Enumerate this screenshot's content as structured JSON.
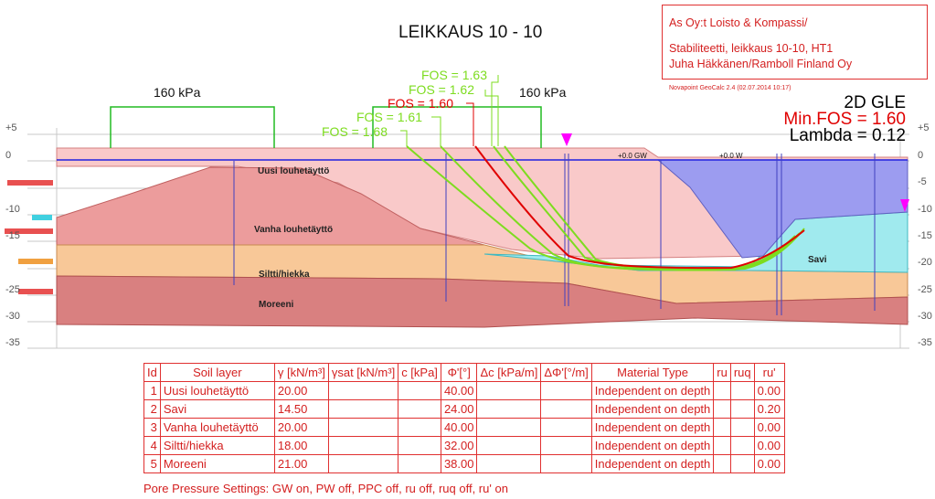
{
  "title": "LEIKKAUS 10 - 10",
  "info_box": {
    "line1": "As Oy:t Loisto & Kompassi/",
    "line2": "Stabiliteetti, leikkaus 10-10, HT1",
    "line3": "Juha Häkkänen/Ramboll Finland Oy"
  },
  "software_note": "Novapoint GeoCalc 2.4  (02.07.2014 10:17)",
  "results": {
    "method": "2D GLE",
    "min_fos": "Min.FOS = 1.60",
    "lambda": "Lambda = 0.12"
  },
  "loads": [
    {
      "label": "160 kPa"
    },
    {
      "label": "160 kPa"
    }
  ],
  "fos_labels": [
    {
      "text": "FOS = 1.63",
      "color": "#7ddc1f"
    },
    {
      "text": "FOS = 1.62",
      "color": "#7ddc1f"
    },
    {
      "text": "FOS = 1.60",
      "color": "#e00000"
    },
    {
      "text": "FOS = 1.61",
      "color": "#7ddc1f"
    },
    {
      "text": "FOS = 1.68",
      "color": "#7ddc1f"
    }
  ],
  "axis": {
    "ticks": [
      "+5",
      "0",
      "-5",
      "-10",
      "-15",
      "-20",
      "-25",
      "-30",
      "-35"
    ]
  },
  "water_labels": [
    "+0.0 GW",
    "+0.0 W"
  ],
  "layer_labels": {
    "uusi": "Uusi louhetäyttö",
    "vanha": "Vanha louhetäyttö",
    "siltti": "Siltti/hiekka",
    "moreeni": "Moreeni",
    "savi": "Savi"
  },
  "colors": {
    "uusi": "#f9c9c9",
    "vanha": "#ec9c9c",
    "siltti": "#f8c898",
    "moreeni": "#d98080",
    "savi": "#a0eaee",
    "water": "#9c9cf0",
    "slip_critical": "#e00000",
    "slip_other": "#7ddc1f",
    "load": "#22bb22",
    "accent": "#d42020"
  },
  "table": {
    "headers": [
      "Id",
      "Soil layer",
      "γ [kN/m³]",
      "γsat [kN/m³]",
      "c [kPa]",
      "Φ'[°]",
      "Δc [kPa/m]",
      "ΔΦ'[°/m]",
      "Material Type",
      "ru",
      "ruq",
      "ru'"
    ],
    "rows": [
      [
        "1",
        "Uusi louhetäyttö",
        "20.00",
        "",
        "",
        "40.00",
        "",
        "",
        "Independent on depth",
        "",
        "",
        "0.00"
      ],
      [
        "2",
        "Savi",
        "14.50",
        "",
        "",
        "24.00",
        "",
        "",
        "Independent on depth",
        "",
        "",
        "0.20"
      ],
      [
        "3",
        "Vanha louhetäyttö",
        "20.00",
        "",
        "",
        "40.00",
        "",
        "",
        "Independent on depth",
        "",
        "",
        "0.00"
      ],
      [
        "4",
        "Siltti/hiekka",
        "18.00",
        "",
        "",
        "32.00",
        "",
        "",
        "Independent on depth",
        "",
        "",
        "0.00"
      ],
      [
        "5",
        "Moreeni",
        "21.00",
        "",
        "",
        "38.00",
        "",
        "",
        "Independent on depth",
        "",
        "",
        "0.00"
      ]
    ]
  },
  "pore_pressure": "Pore Pressure Settings: GW on, PW off, PPC off, ru off, ruq off, ru' on"
}
